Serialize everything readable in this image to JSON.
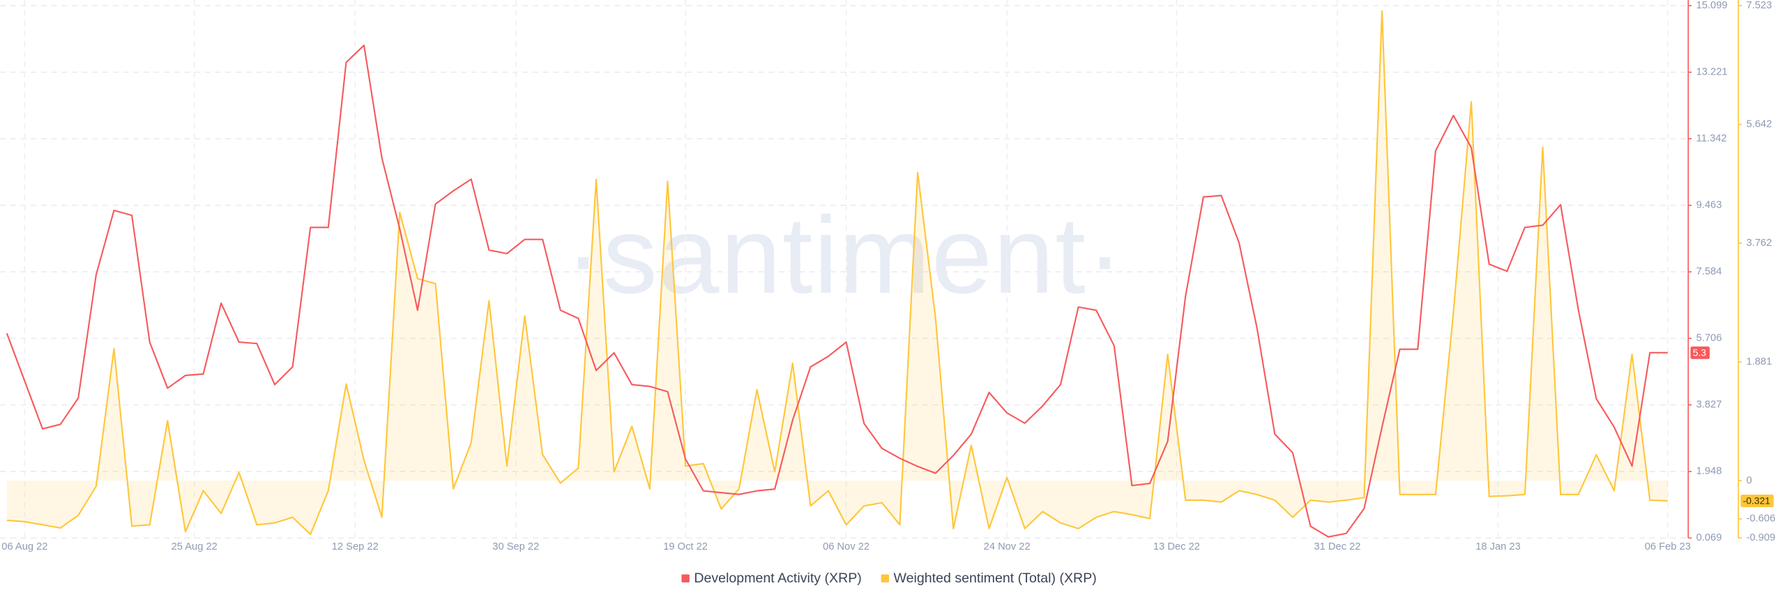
{
  "chart_data": {
    "type": "line",
    "watermark": "·santiment·",
    "x": [
      "2022-08-04",
      "2022-08-06",
      "2022-08-08",
      "2022-08-10",
      "2022-08-12",
      "2022-08-14",
      "2022-08-16",
      "2022-08-18",
      "2022-08-20",
      "2022-08-22",
      "2022-08-24",
      "2022-08-26",
      "2022-08-28",
      "2022-08-30",
      "2022-09-01",
      "2022-09-03",
      "2022-09-05",
      "2022-09-07",
      "2022-09-09",
      "2022-09-11",
      "2022-09-13",
      "2022-09-15",
      "2022-09-17",
      "2022-09-19",
      "2022-09-21",
      "2022-09-23",
      "2022-09-25",
      "2022-09-27",
      "2022-09-29",
      "2022-10-01",
      "2022-10-03",
      "2022-10-05",
      "2022-10-07",
      "2022-10-09",
      "2022-10-11",
      "2022-10-13",
      "2022-10-15",
      "2022-10-17",
      "2022-10-19",
      "2022-10-21",
      "2022-10-23",
      "2022-10-25",
      "2022-10-27",
      "2022-10-29",
      "2022-10-31",
      "2022-11-02",
      "2022-11-04",
      "2022-11-06",
      "2022-11-08",
      "2022-11-10",
      "2022-11-12",
      "2022-11-14",
      "2022-11-16",
      "2022-11-18",
      "2022-11-20",
      "2022-11-22",
      "2022-11-24",
      "2022-11-26",
      "2022-11-28",
      "2022-11-30",
      "2022-12-02",
      "2022-12-04",
      "2022-12-06",
      "2022-12-08",
      "2022-12-10",
      "2022-12-12",
      "2022-12-14",
      "2022-12-16",
      "2022-12-18",
      "2022-12-20",
      "2022-12-22",
      "2022-12-24",
      "2022-12-26",
      "2022-12-28",
      "2022-12-30",
      "2023-01-01",
      "2023-01-03",
      "2023-01-05",
      "2023-01-07",
      "2023-01-09",
      "2023-01-11",
      "2023-01-13",
      "2023-01-15",
      "2023-01-17",
      "2023-01-19",
      "2023-01-21",
      "2023-01-23",
      "2023-01-25",
      "2023-01-27",
      "2023-01-29",
      "2023-01-31",
      "2023-02-02",
      "2023-02-04",
      "2023-02-06"
    ],
    "xlim": [
      "2022-08-04",
      "2023-02-06"
    ],
    "xticks": [
      {
        "value": "2022-08-06",
        "label": "06 Aug 22"
      },
      {
        "value": "2022-08-25",
        "label": "25 Aug 22"
      },
      {
        "value": "2022-09-12",
        "label": "12 Sep 22"
      },
      {
        "value": "2022-09-30",
        "label": "30 Sep 22"
      },
      {
        "value": "2022-10-19",
        "label": "19 Oct 22"
      },
      {
        "value": "2022-11-06",
        "label": "06 Nov 22"
      },
      {
        "value": "2022-11-24",
        "label": "24 Nov 22"
      },
      {
        "value": "2022-12-13",
        "label": "13 Dec 22"
      },
      {
        "value": "2022-12-31",
        "label": "31 Dec 22"
      },
      {
        "value": "2023-01-18",
        "label": "18 Jan 23"
      },
      {
        "value": "2023-02-06",
        "label": "06 Feb 23"
      }
    ],
    "ylim": [
      0.069,
      15.099
    ],
    "yticks": [
      0.069,
      1.948,
      3.827,
      5.706,
      7.584,
      9.463,
      11.342,
      13.221,
      15.099
    ],
    "y2lim": [
      -0.909,
      7.523
    ],
    "y2ticks": [
      -0.909,
      -0.606,
      0,
      1.881,
      3.762,
      5.642,
      7.523
    ],
    "grid": true,
    "legend": "bottom",
    "series": [
      {
        "name": "Development Activity (XRP)",
        "color": "#f7595c",
        "axis": "y",
        "values": [
          5.85,
          4.5,
          3.15,
          3.28,
          4.02,
          7.5,
          9.32,
          9.18,
          5.6,
          4.3,
          4.66,
          4.7,
          6.7,
          5.6,
          5.56,
          4.4,
          4.9,
          8.84,
          8.84,
          13.5,
          13.98,
          10.8,
          8.8,
          6.5,
          9.5,
          9.87,
          10.2,
          8.2,
          8.1,
          8.5,
          8.5,
          6.5,
          6.27,
          4.8,
          5.3,
          4.4,
          4.35,
          4.2,
          2.3,
          1.4,
          1.35,
          1.3,
          1.4,
          1.45,
          3.4,
          4.9,
          5.2,
          5.6,
          3.3,
          2.6,
          2.32,
          2.09,
          1.9,
          2.4,
          3.0,
          4.18,
          3.6,
          3.31,
          3.8,
          4.4,
          6.59,
          6.5,
          5.5,
          1.55,
          1.61,
          2.8,
          6.9,
          9.7,
          9.74,
          8.4,
          6.0,
          3.0,
          2.48,
          0.4,
          0.1,
          0.2,
          0.9,
          3.2,
          5.4,
          5.4,
          11.0,
          12.0,
          11.09,
          7.8,
          7.6,
          8.84,
          8.9,
          9.48,
          6.5,
          4.0,
          3.2,
          2.1,
          5.3,
          5.3
        ]
      },
      {
        "name": "Weighted sentiment (Total) (XRP)",
        "color": "#ffc63a",
        "axis": "y2",
        "values": [
          -0.63,
          -0.65,
          -0.7,
          -0.75,
          -0.55,
          -0.09,
          2.09,
          -0.72,
          -0.7,
          0.95,
          -0.81,
          -0.16,
          -0.52,
          0.13,
          -0.7,
          -0.67,
          -0.58,
          -0.85,
          -0.16,
          1.53,
          0.32,
          -0.58,
          4.25,
          3.2,
          3.12,
          -0.13,
          0.6,
          2.85,
          0.23,
          2.61,
          0.41,
          -0.04,
          0.2,
          4.77,
          0.14,
          0.86,
          -0.13,
          4.74,
          0.23,
          0.27,
          -0.45,
          -0.13,
          1.44,
          0.14,
          1.86,
          -0.4,
          -0.16,
          -0.7,
          -0.4,
          -0.35,
          -0.7,
          4.88,
          2.58,
          -0.76,
          0.56,
          -0.76,
          0.05,
          -0.76,
          -0.49,
          -0.67,
          -0.76,
          -0.58,
          -0.49,
          -0.54,
          -0.6,
          2.0,
          -0.31,
          -0.31,
          -0.34,
          -0.16,
          -0.22,
          -0.31,
          -0.58,
          -0.31,
          -0.34,
          -0.31,
          -0.27,
          7.44,
          -0.22,
          -0.22,
          -0.22,
          2.67,
          6.0,
          -0.25,
          -0.24,
          -0.22,
          5.28,
          -0.22,
          -0.22,
          0.41,
          -0.16,
          2.0,
          -0.31,
          -0.321
        ]
      }
    ]
  }
}
